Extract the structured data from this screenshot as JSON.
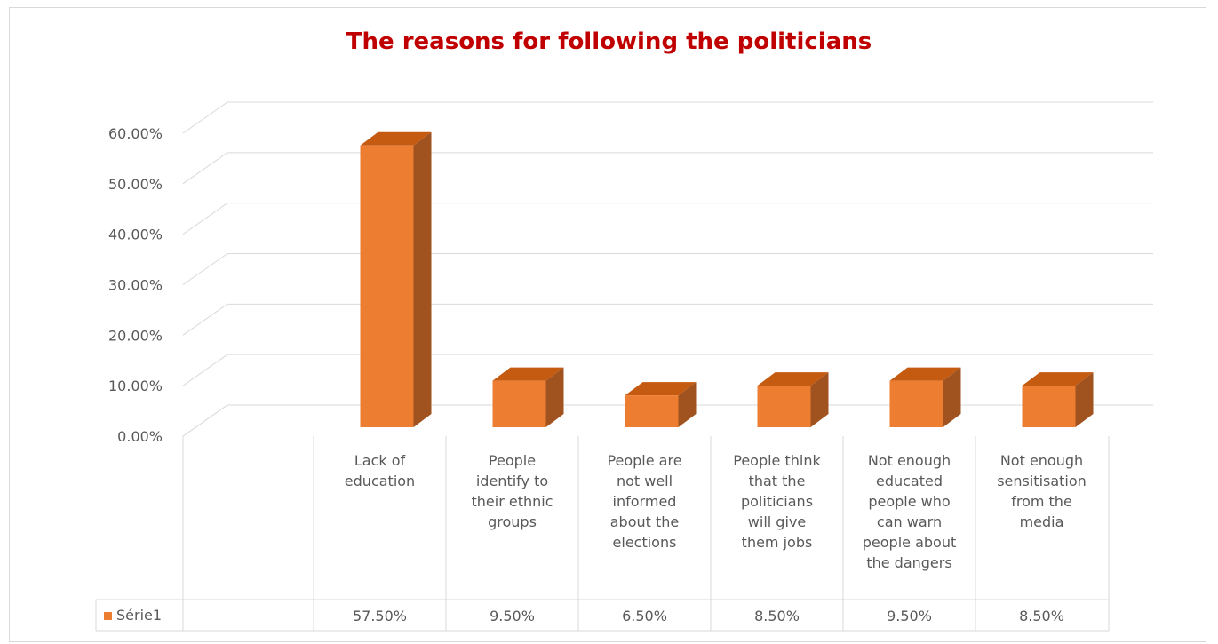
{
  "chart_data": {
    "type": "bar",
    "title": "The reasons for following the politicians",
    "categories": [
      [
        "Lack of",
        "education"
      ],
      [
        "People",
        "identify to",
        "their ethnic",
        "groups"
      ],
      [
        "People are",
        "not well",
        "informed",
        "about the",
        "elections"
      ],
      [
        "People think",
        "that the",
        "politicians",
        "will give",
        "them jobs"
      ],
      [
        "Not enough",
        "educated",
        "people who",
        "can warn",
        "people about",
        "the dangers"
      ],
      [
        "Not enough",
        "sensitisation",
        "from the",
        "media"
      ]
    ],
    "series": [
      {
        "name": "Série1",
        "values": [
          57.5,
          9.5,
          6.5,
          8.5,
          9.5,
          8.5
        ],
        "labels": [
          "57.50%",
          "9.50%",
          "6.50%",
          "8.50%",
          "9.50%",
          "8.50%"
        ],
        "color": "#ed7d31",
        "side_color": "#a0521f",
        "top_color": "#c55a11"
      }
    ],
    "y_ticks": [
      "0.00%",
      "10.00%",
      "20.00%",
      "30.00%",
      "40.00%",
      "50.00%",
      "60.00%"
    ],
    "ylim": [
      0,
      60
    ],
    "grid": true,
    "data_table": true,
    "legend": "data-table"
  }
}
